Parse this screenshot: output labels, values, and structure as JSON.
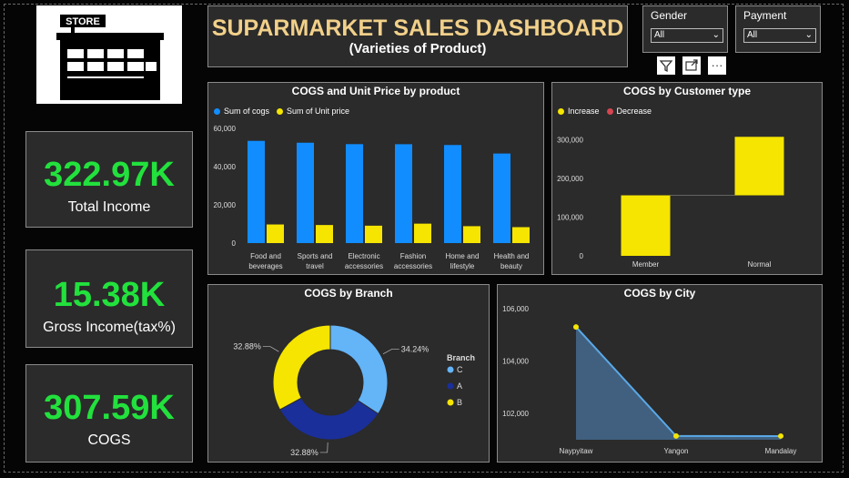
{
  "header": {
    "title": "SUPARMARKET SALES DASHBOARD",
    "subtitle": "(Varieties of Product)"
  },
  "logo": {
    "sign_text": "STORE",
    "icon": "store-icon"
  },
  "kpis": [
    {
      "value": "322.97K",
      "label": "Total Income"
    },
    {
      "value": "15.38K",
      "label": "Gross Income(tax%)"
    },
    {
      "value": "307.59K",
      "label": "COGS"
    }
  ],
  "slicers": {
    "gender": {
      "label": "Gender",
      "value": "All"
    },
    "payment": {
      "label": "Payment",
      "value": "All"
    }
  },
  "toolbar": {
    "filter_icon": "filter-icon",
    "focus_icon": "focus-mode-icon",
    "more_icon": "more-options-icon",
    "more_label": "···"
  },
  "colors": {
    "blue": "#118dff",
    "yellow": "#f5e500",
    "red": "#d64550",
    "kpi_green": "#22e13d",
    "title_gold": "#f1d08a",
    "donut_light": "#64b4f8",
    "donut_dark": "#1a2f9a",
    "area_fill": "#41607f",
    "area_line": "#5aa9e8"
  },
  "chart_data": [
    {
      "type": "bar",
      "title": "COGS and Unit Price by product",
      "categories": [
        "Food and beverages",
        "Sports and travel",
        "Electronic accessories",
        "Fashion accessories",
        "Home and lifestyle",
        "Health and beauty"
      ],
      "category_lines": [
        [
          "Food and",
          "beverages"
        ],
        [
          "Sports and",
          "travel"
        ],
        [
          "Electronic",
          "accessories"
        ],
        [
          "Fashion",
          "accessories"
        ],
        [
          "Home and",
          "lifestyle"
        ],
        [
          "Health and",
          "beauty"
        ]
      ],
      "series": [
        {
          "name": "Sum of cogs",
          "values": [
            53472,
            52497,
            51750,
            51720,
            51298,
            46851
          ]
        },
        {
          "name": "Sum of Unit price",
          "values": [
            9745,
            9460,
            9104,
            10173,
            8850,
            8337
          ]
        }
      ],
      "yticks": [
        "0",
        "20,000",
        "40,000",
        "60,000"
      ],
      "ylim": [
        0,
        60000
      ],
      "legend": "top-left",
      "grid": false
    },
    {
      "type": "waterfall",
      "title": "COGS by Customer type",
      "categories": [
        "Member",
        "Normal"
      ],
      "values": [
        156403,
        151187
      ],
      "legend_items": [
        {
          "name": "Increase"
        },
        {
          "name": "Decrease"
        }
      ],
      "yticks": [
        "0",
        "100,000",
        "200,000",
        "300,000"
      ],
      "ylim": [
        0,
        320000
      ],
      "legend": "top-left"
    },
    {
      "type": "pie",
      "title": "COGS by Branch",
      "legend_title": "Branch",
      "labels": [
        "C",
        "A",
        "B"
      ],
      "values": [
        34.24,
        32.88,
        32.88
      ],
      "value_labels": [
        "34.24%",
        "32.88%",
        "32.88%"
      ],
      "donut": true,
      "legend": "right"
    },
    {
      "type": "area",
      "title": "COGS by City",
      "x": [
        "Naypyitaw",
        "Yangon",
        "Mandalay"
      ],
      "values": [
        105303,
        101143,
        101141
      ],
      "yticks": [
        "102,000",
        "104,000",
        "106,000"
      ],
      "ylim": [
        101000,
        106000
      ]
    }
  ]
}
